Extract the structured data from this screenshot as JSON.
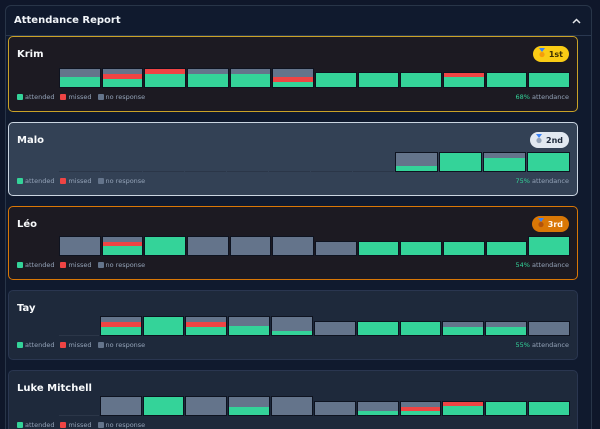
{
  "panel": {
    "title": "Attendance Report",
    "collapse_icon": "chevron-up-icon"
  },
  "legend": {
    "attended": "attended",
    "missed": "missed",
    "no_response": "no response"
  },
  "colors": {
    "attended": "#34d399",
    "missed": "#ef4444",
    "no_response": "#64748b",
    "gold": "#facc15",
    "silver": "#e2e8f0",
    "bronze": "#d97706"
  },
  "attendance_suffix": "attendance",
  "members": [
    {
      "name": "Krim",
      "rank": "1st",
      "rank_icon": "gold-medal-icon",
      "tier": "gold",
      "percent": "68%",
      "bars": [
        {
          "att": 0.55,
          "miss": 0,
          "none": 0.45
        },
        {
          "att": 0.45,
          "miss": 0.3,
          "none": 0.25
        },
        {
          "att": 0.75,
          "miss": 0.25,
          "none": 0
        },
        {
          "att": 0.75,
          "miss": 0,
          "none": 0.25
        },
        {
          "att": 0.75,
          "miss": 0,
          "none": 0.25
        },
        {
          "att": 0.25,
          "miss": 0.3,
          "none": 0.45
        },
        {
          "att": 1,
          "miss": 0,
          "none": 0
        },
        {
          "att": 1,
          "miss": 0,
          "none": 0
        },
        {
          "att": 1,
          "miss": 0,
          "none": 0
        },
        {
          "att": 0.7,
          "miss": 0.3,
          "none": 0
        },
        {
          "att": 1,
          "miss": 0,
          "none": 0
        },
        {
          "att": 1,
          "miss": 0,
          "none": 0
        }
      ],
      "heights": [
        20,
        20,
        20,
        20,
        20,
        20,
        16,
        16,
        16,
        16,
        16,
        16
      ]
    },
    {
      "name": "Malo",
      "rank": "2nd",
      "rank_icon": "silver-medal-icon",
      "tier": "silver",
      "percent": "75%",
      "bars": [
        null,
        null,
        null,
        null,
        null,
        null,
        null,
        null,
        {
          "att": 0.3,
          "miss": 0,
          "none": 0.7
        },
        {
          "att": 1,
          "miss": 0,
          "none": 0
        },
        {
          "att": 0.7,
          "miss": 0,
          "none": 0.3
        },
        {
          "att": 1,
          "miss": 0,
          "none": 0
        }
      ],
      "heights": [
        1,
        1,
        1,
        1,
        1,
        1,
        1,
        1,
        20,
        20,
        20,
        20
      ]
    },
    {
      "name": "Léo",
      "rank": "3rd",
      "rank_icon": "bronze-medal-icon",
      "tier": "bronze",
      "percent": "54%",
      "bars": [
        {
          "att": 0,
          "miss": 0,
          "none": 1
        },
        {
          "att": 0.5,
          "miss": 0.25,
          "none": 0.25
        },
        {
          "att": 1,
          "miss": 0,
          "none": 0
        },
        {
          "att": 0,
          "miss": 0,
          "none": 1
        },
        {
          "att": 0,
          "miss": 0,
          "none": 1
        },
        {
          "att": 0,
          "miss": 0,
          "none": 1
        },
        {
          "att": 0,
          "miss": 0,
          "none": 1
        },
        {
          "att": 1,
          "miss": 0,
          "none": 0
        },
        {
          "att": 1,
          "miss": 0,
          "none": 0
        },
        {
          "att": 1,
          "miss": 0,
          "none": 0
        },
        {
          "att": 1,
          "miss": 0,
          "none": 0
        },
        {
          "att": 1,
          "miss": 0,
          "none": 0
        }
      ],
      "heights": [
        20,
        20,
        20,
        20,
        20,
        20,
        15,
        15,
        15,
        15,
        15,
        20
      ]
    },
    {
      "name": "Tay",
      "rank": "",
      "tier": "plain",
      "percent": "55%",
      "bars": [
        null,
        null,
        null,
        null,
        null,
        null,
        {
          "att": 0.45,
          "miss": 0.25,
          "none": 0.3
        },
        {
          "att": 1,
          "miss": 0,
          "none": 0
        },
        {
          "att": 0.45,
          "miss": 0.25,
          "none": 0.3
        },
        {
          "att": 0.5,
          "miss": 0,
          "none": 0.5
        },
        {
          "att": 0.2,
          "miss": 0,
          "none": 0.8
        },
        {
          "att": 0,
          "miss": 0,
          "none": 1
        },
        {
          "att": 1,
          "miss": 0,
          "none": 0
        },
        {
          "att": 1,
          "miss": 0,
          "none": 0
        },
        {
          "att": 0.65,
          "miss": 0,
          "none": 0.35
        },
        {
          "att": 0.65,
          "miss": 0,
          "none": 0.35
        },
        {
          "att": 0,
          "miss": 0,
          "none": 1
        }
      ],
      "heights": [
        0,
        0,
        0,
        0,
        0,
        0,
        20,
        20,
        20,
        20,
        20,
        15,
        15,
        15,
        15,
        15,
        15
      ]
    },
    {
      "name": "Luke Mitchell",
      "rank": "",
      "tier": "plain",
      "percent": "",
      "bars": [
        null,
        null,
        null,
        null,
        null,
        null,
        {
          "att": 0,
          "miss": 0,
          "none": 1
        },
        {
          "att": 1,
          "miss": 0,
          "none": 0
        },
        {
          "att": 0,
          "miss": 0,
          "none": 1
        },
        {
          "att": 0.45,
          "miss": 0,
          "none": 0.55
        },
        {
          "att": 0,
          "miss": 0,
          "none": 1
        },
        {
          "att": 0,
          "miss": 0,
          "none": 1
        },
        {
          "att": 0.3,
          "miss": 0,
          "none": 0.7
        },
        {
          "att": 0.3,
          "miss": 0.3,
          "none": 0.4
        },
        {
          "att": 0.7,
          "miss": 0.3,
          "none": 0
        },
        {
          "att": 1,
          "miss": 0,
          "none": 0
        },
        {
          "att": 1,
          "miss": 0,
          "none": 0
        }
      ],
      "heights": [
        0,
        0,
        0,
        0,
        0,
        0,
        20,
        20,
        20,
        20,
        20,
        15,
        15,
        15,
        15,
        15,
        15
      ]
    }
  ]
}
